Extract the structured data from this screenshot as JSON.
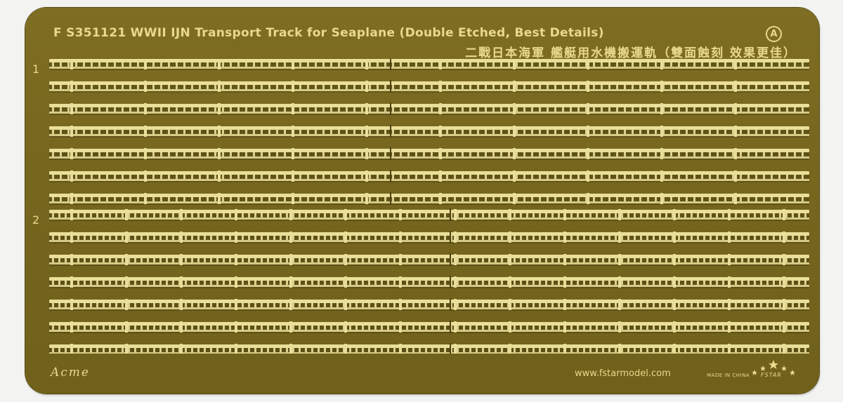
{
  "product": {
    "title": "F S351121 WWII IJN Transport Track for Seaplane (Double Etched, Best Details)",
    "subtitle_cn": "二戰日本海軍 艦艇用水機搬運軌（雙面蝕刻 效果更佳）",
    "sheet_id": "A"
  },
  "groups": [
    {
      "label": "1",
      "rail_count": 7
    },
    {
      "label": "2",
      "rail_count": 7
    }
  ],
  "footer": {
    "brand": "Acme",
    "website": "www.fstarmodel.com",
    "made_in": "MADE IN CHINA",
    "logo_text": "FSTAR"
  },
  "colors": {
    "brass": "#7a6a20",
    "rail_light": "#eadf9a",
    "rail_shadow": "#4d4110",
    "background": "#f3f3f1"
  }
}
